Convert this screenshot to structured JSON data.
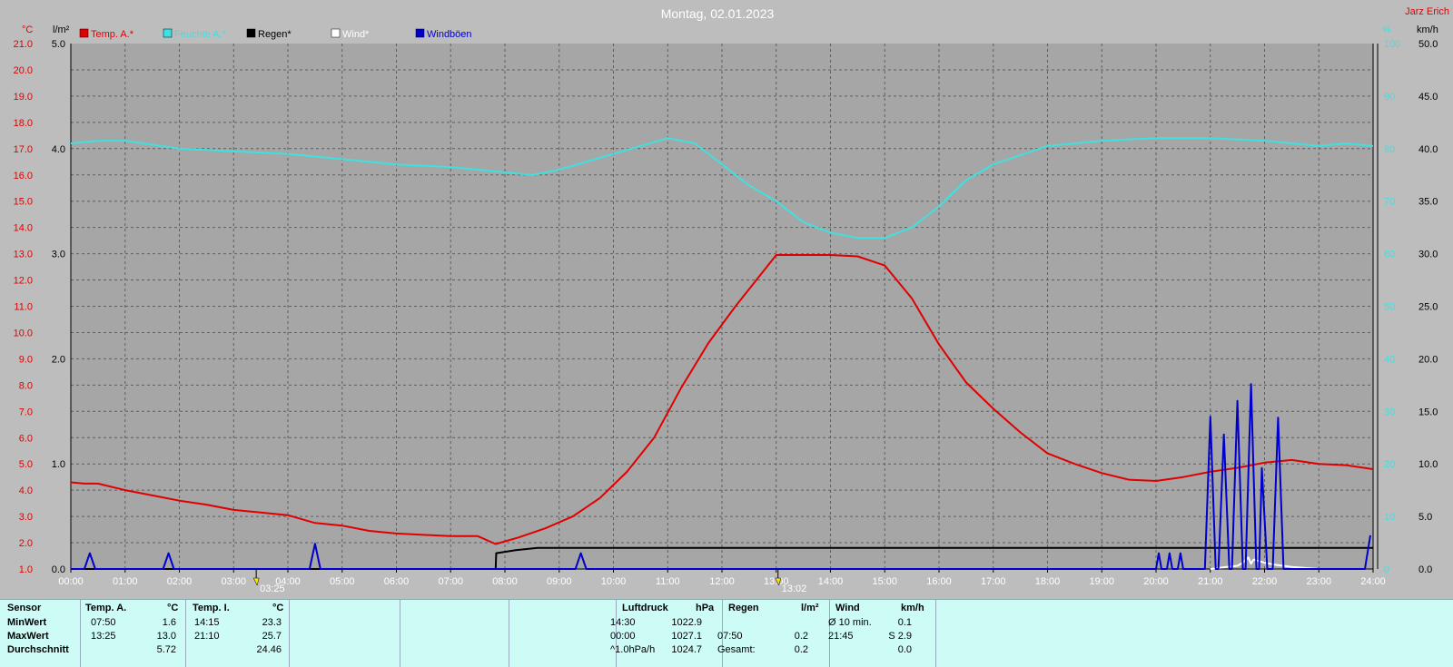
{
  "title": "Montag, 02.01.2023",
  "author": "Jarz Erich",
  "axes": {
    "left_temp_unit": "°C",
    "left_rain_unit": "l/m²",
    "right_hum_unit": "%",
    "right_wind_unit": "km/h",
    "temp_ticks": [
      "1.0",
      "2.0",
      "3.0",
      "4.0",
      "5.0",
      "6.0",
      "7.0",
      "8.0",
      "9.0",
      "10.0",
      "11.0",
      "12.0",
      "13.0",
      "14.0",
      "15.0",
      "16.0",
      "17.0",
      "18.0",
      "19.0",
      "20.0",
      "21.0"
    ],
    "rain_ticks": [
      "0.0",
      "1.0",
      "2.0",
      "3.0",
      "4.0",
      "5.0"
    ],
    "hum_ticks": [
      "0",
      "10",
      "20",
      "30",
      "40",
      "50",
      "60",
      "70",
      "80",
      "90",
      "100"
    ],
    "wind_ticks": [
      "0.0",
      "5.0",
      "10.0",
      "15.0",
      "20.0",
      "25.0",
      "30.0",
      "35.0",
      "40.0",
      "45.0",
      "50.0"
    ],
    "time_ticks": [
      "00:00",
      "01:00",
      "02:00",
      "03:00",
      "04:00",
      "05:00",
      "06:00",
      "07:00",
      "08:00",
      "09:00",
      "10:00",
      "11:00",
      "12:00",
      "13:00",
      "14:00",
      "15:00",
      "16:00",
      "17:00",
      "18:00",
      "19:00",
      "20:00",
      "21:00",
      "22:00",
      "23:00",
      "24:00"
    ],
    "markers": [
      {
        "time": "03:25"
      },
      {
        "time": "13:02"
      }
    ]
  },
  "legend": [
    {
      "label": "Temp. A.*",
      "color": "#e00000"
    },
    {
      "label": "Feuchte A.*",
      "color": "#40e0e0"
    },
    {
      "label": "Regen*",
      "color": "#000000"
    },
    {
      "label": "Wind*",
      "color": "#ffffff"
    },
    {
      "label": "Windböen",
      "color": "#0000cc"
    }
  ],
  "chart_data": {
    "type": "line",
    "title": "Montag, 02.01.2023",
    "xlim": [
      0,
      24
    ],
    "temp_ylim": [
      1,
      21
    ],
    "rain_ylim": [
      0,
      5
    ],
    "hum_ylim": [
      0,
      100
    ],
    "wind_ylim": [
      0,
      50
    ],
    "series": [
      {
        "name": "Temp. A.*",
        "axis": "temp",
        "color": "#e00000",
        "x": [
          0,
          0.25,
          0.5,
          1,
          1.5,
          2,
          2.5,
          3,
          3.5,
          4,
          4.5,
          5,
          5.5,
          6,
          6.5,
          7,
          7.5,
          7.83,
          8.25,
          8.75,
          9.25,
          9.75,
          10.25,
          10.75,
          11.25,
          11.75,
          12.25,
          12.75,
          13,
          13.42,
          14,
          14.5,
          15,
          15.5,
          16,
          16.5,
          17,
          17.5,
          18,
          18.5,
          19,
          19.5,
          20,
          20.5,
          21,
          21.5,
          22,
          22.5,
          23,
          23.5,
          24
        ],
        "y": [
          4.3,
          4.25,
          4.25,
          4.0,
          3.8,
          3.6,
          3.45,
          3.25,
          3.15,
          3.05,
          2.75,
          2.65,
          2.45,
          2.35,
          2.3,
          2.25,
          2.25,
          1.95,
          2.2,
          2.55,
          3.0,
          3.7,
          4.7,
          6.0,
          7.9,
          9.6,
          11.0,
          12.3,
          12.95,
          12.95,
          12.95,
          12.9,
          12.55,
          11.3,
          9.55,
          8.1,
          7.1,
          6.2,
          5.4,
          5.0,
          4.65,
          4.4,
          4.35,
          4.5,
          4.7,
          4.85,
          5.05,
          5.15,
          5.0,
          4.95,
          4.8
        ]
      },
      {
        "name": "Feuchte A.*",
        "axis": "hum",
        "color": "#40e0e0",
        "x": [
          0,
          0.5,
          1,
          2,
          3,
          4,
          5,
          6,
          7,
          8,
          8.5,
          9,
          10,
          11,
          11.5,
          12,
          12.5,
          13,
          13.5,
          14,
          14.5,
          15,
          15.5,
          16,
          16.5,
          17,
          18,
          19,
          20,
          21,
          22,
          23,
          23.5,
          24
        ],
        "y": [
          81,
          81.5,
          81.5,
          80,
          79.5,
          79,
          78,
          77,
          76.5,
          75.5,
          75,
          76,
          79,
          82,
          81,
          77,
          73,
          70,
          66,
          64,
          63,
          63,
          65,
          69,
          74,
          77,
          80.5,
          81.5,
          82,
          82,
          81.5,
          80.5,
          81,
          80.5
        ]
      },
      {
        "name": "Regen*",
        "axis": "rain",
        "color": "#000000",
        "x": [
          0,
          7.83,
          7.84,
          8.2,
          8.6,
          9,
          24
        ],
        "y": [
          0,
          0,
          0.15,
          0.18,
          0.2,
          0.2,
          0.2
        ]
      },
      {
        "name": "Wind*",
        "axis": "wind",
        "color": "#ffffff",
        "x": [
          21,
          21.3,
          21.5,
          21.6,
          21.7,
          21.75,
          21.8,
          22,
          22.2,
          22.5,
          23
        ],
        "y": [
          0,
          0.2,
          0.3,
          0.6,
          1.1,
          0.5,
          0.9,
          0.6,
          0.4,
          0.2,
          0
        ]
      },
      {
        "name": "Windböen",
        "axis": "wind",
        "color": "#0000cc",
        "x": [
          0,
          0.25,
          0.35,
          0.45,
          1.7,
          1.8,
          1.9,
          4.4,
          4.5,
          4.6,
          9.3,
          9.4,
          9.5,
          20.0,
          20.05,
          20.1,
          20.2,
          20.25,
          20.3,
          20.4,
          20.45,
          20.5,
          20.9,
          21.0,
          21.1,
          21.15,
          21.25,
          21.35,
          21.4,
          21.5,
          21.6,
          21.65,
          21.75,
          21.85,
          21.9,
          21.95,
          22.05,
          22.15,
          22.25,
          22.35,
          23.85,
          23.95
        ],
        "y": [
          0,
          0,
          1.5,
          0,
          0,
          1.5,
          0,
          0,
          2.4,
          0,
          0,
          1.5,
          0,
          0,
          1.5,
          0,
          0,
          1.5,
          0,
          0,
          1.5,
          0,
          0,
          14.5,
          0,
          0,
          12.8,
          0,
          0,
          16.0,
          0,
          0,
          17.6,
          0,
          0,
          9.6,
          0,
          0,
          14.4,
          0,
          0,
          3.2
        ]
      }
    ]
  },
  "stats": {
    "headers": {
      "sensor": "Sensor",
      "temp_a": "Temp. A.",
      "temp_a_unit": "°C",
      "temp_i": "Temp. I.",
      "temp_i_unit": "°C",
      "pressure": "Luftdruck",
      "pressure_unit": "hPa",
      "rain": "Regen",
      "rain_unit": "l/m²",
      "wind": "Wind",
      "wind_unit": "km/h"
    },
    "rows": [
      {
        "label": "MinWert",
        "ta_time": "07:50",
        "ta_val": "1.6",
        "ti_time": "14:15",
        "ti_val": "23.3",
        "p_time": "14:30",
        "p_val": "1022.9",
        "r_time": "",
        "r_val": "",
        "w_time": "Ø 10 min.",
        "w_val": "0.1"
      },
      {
        "label": "MaxWert",
        "ta_time": "13:25",
        "ta_val": "13.0",
        "ti_time": "21:10",
        "ti_val": "25.7",
        "p_time": "00:00",
        "p_val": "1027.1",
        "r_time": "07:50",
        "r_val": "0.2",
        "w_time": "21:45",
        "w_val": "S 2.9"
      },
      {
        "label": "Durchschnitt",
        "ta_time": "",
        "ta_val": "5.72",
        "ti_time": "",
        "ti_val": "24.46",
        "p_time": "^1.0hPa/h",
        "p_val": "1024.7",
        "r_time": "Gesamt:",
        "r_val": "0.2",
        "w_time": "",
        "w_val": "0.0"
      }
    ]
  }
}
